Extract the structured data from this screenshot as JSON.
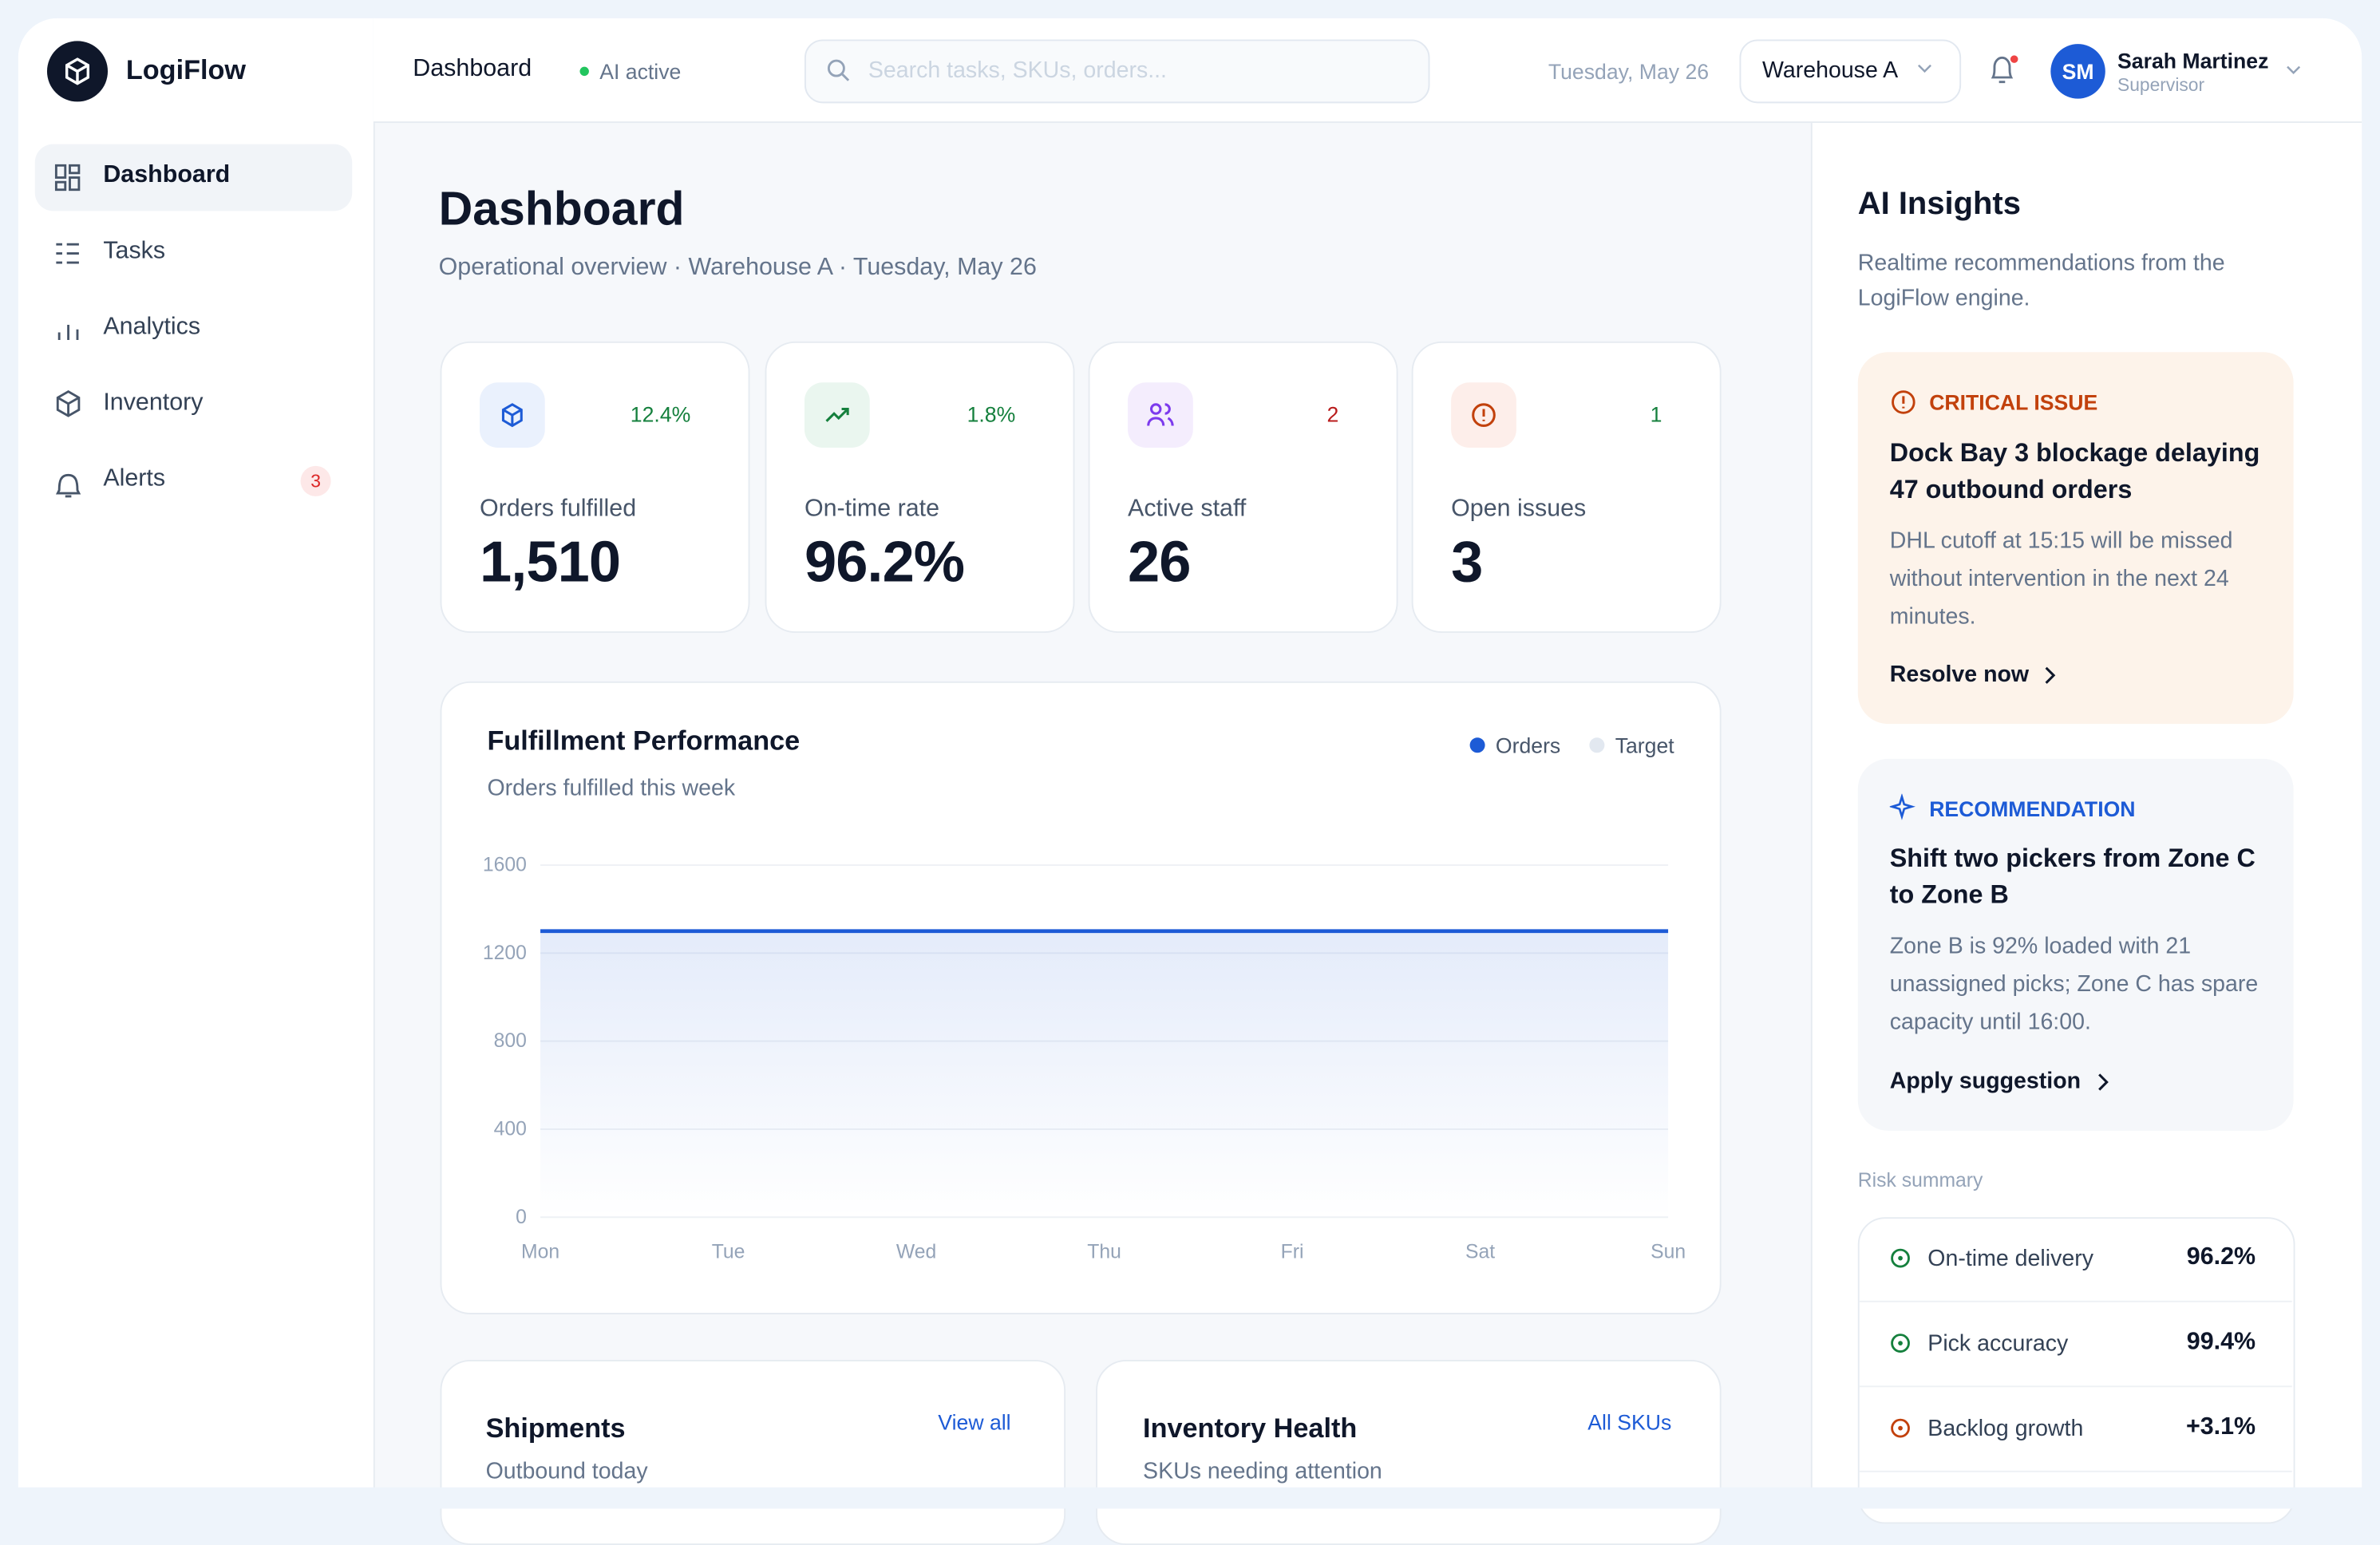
{
  "brand": "LogiFlow",
  "nav": [
    {
      "label": "Dashboard"
    },
    {
      "label": "Tasks"
    },
    {
      "label": "Analytics"
    },
    {
      "label": "Inventory"
    },
    {
      "label": "Alerts",
      "badge": "3"
    }
  ],
  "topbar": {
    "page": "Dashboard",
    "status": "AI active",
    "search": "Search tasks, SKUs, orders...",
    "date": "Tuesday, May 26",
    "warehouse": "Warehouse A",
    "initials": "SM",
    "user": "Sarah Martinez",
    "role": "Supervisor"
  },
  "header": {
    "title": "Dashboard",
    "subtitle": "Operational overview · Warehouse A · Tuesday, May 26"
  },
  "kpis": [
    {
      "label": "Orders fulfilled",
      "value": "1,510",
      "delta": "12.4%"
    },
    {
      "label": "On-time rate",
      "value": "96.2%",
      "delta": "1.8%"
    },
    {
      "label": "Active staff",
      "value": "26",
      "delta": "2"
    },
    {
      "label": "Open issues",
      "value": "3",
      "delta": "1"
    }
  ],
  "chart_data": {
    "type": "area",
    "title": "Fulfillment Performance",
    "subtitle": "Orders fulfilled this week",
    "categories": [
      "Mon",
      "Tue",
      "Wed",
      "Thu",
      "Fri",
      "Sat",
      "Sun"
    ],
    "series": [
      {
        "name": "Orders",
        "color": "#1d5bd6",
        "values": [
          1300,
          1300,
          1300,
          1300,
          1300,
          1300,
          1300
        ]
      },
      {
        "name": "Target",
        "color": "#e2e8f0",
        "values": [
          null,
          null,
          null,
          null,
          null,
          null,
          null
        ]
      }
    ],
    "ylim": [
      0,
      1600
    ],
    "yticks": [
      0,
      400,
      800,
      1200,
      1600
    ],
    "grid": true
  },
  "shipments": {
    "title": "Shipments",
    "subtitle": "Outbound today",
    "link": "View all"
  },
  "inventory": {
    "title": "Inventory Health",
    "subtitle": "SKUs needing attention",
    "link": "All SKUs"
  },
  "insights": {
    "title": "AI Insights",
    "subtitle": "Realtime recommendations from the LogiFlow engine.",
    "cards": [
      {
        "tag": "CRITICAL ISSUE",
        "title": "Dock Bay 3 blockage delaying 47 outbound orders",
        "body": "DHL cutoff at 15:15 will be missed without intervention in the next 24 minutes.",
        "action": "Resolve now"
      },
      {
        "tag": "RECOMMENDATION",
        "title": "Shift two pickers from Zone C to Zone B",
        "body": "Zone B is 92% loaded with 21 unassigned picks; Zone C has spare capacity until 16:00.",
        "action": "Apply suggestion"
      }
    ],
    "risk_title": "Risk summary",
    "risk": [
      {
        "label": "On-time delivery",
        "value": "96.2%"
      },
      {
        "label": "Pick accuracy",
        "value": "99.4%"
      },
      {
        "label": "Backlog growth",
        "value": "+3.1%"
      }
    ]
  }
}
